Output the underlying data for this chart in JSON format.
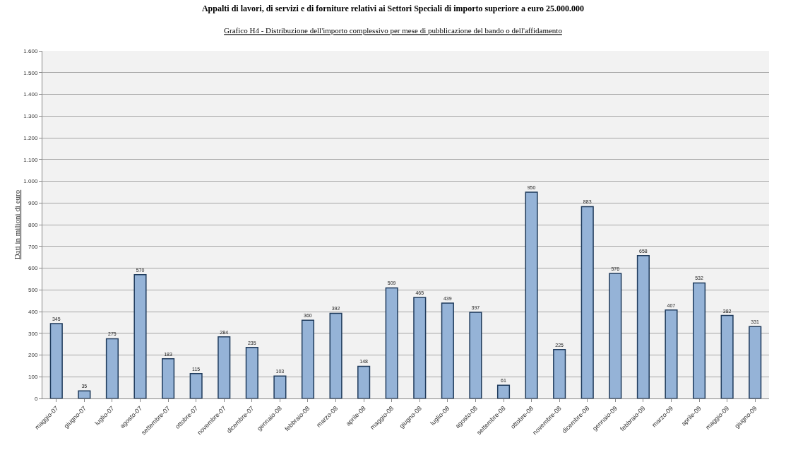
{
  "chart_data": {
    "type": "bar",
    "title": "Appalti di lavori, di servizi e di forniture relativi ai Settori Speciali di importo superiore a euro 25.000.000",
    "subtitle": "Grafico H4 - Distribuzione dell'importo complessivo per mese di pubblicazione del bando o dell'affidamento",
    "ylabel": "Dati in milioni di euro",
    "categories": [
      "maggio-07",
      "giugno-07",
      "luglio-07",
      "agosto-07",
      "settembre-07",
      "ottobre-07",
      "novembre-07",
      "dicembre-07",
      "gennaio-08",
      "febbraio-08",
      "marzo-08",
      "aprile-08",
      "maggio-08",
      "giugno-08",
      "luglio-08",
      "agosto-08",
      "settembre-08",
      "ottobre-08",
      "novembre-08",
      "dicembre-08",
      "gennaio-09",
      "febbraio-09",
      "marzo-09",
      "aprile-09",
      "maggio-09",
      "giugno-09"
    ],
    "values": [
      345,
      35,
      275,
      570,
      183,
      115,
      284,
      235,
      103,
      360,
      392,
      148,
      509,
      465,
      439,
      397,
      61,
      950,
      225,
      883,
      576,
      658,
      407,
      532,
      382,
      331
    ],
    "color": "#95b3d7",
    "data_labels": true,
    "grid": "y",
    "ylim": [
      0,
      1600
    ],
    "yticks": [
      0,
      100,
      200,
      300,
      400,
      500,
      600,
      700,
      800,
      900,
      {
        "value": 1000,
        "label": "1.000"
      },
      {
        "value": 1100,
        "label": "1.100"
      },
      {
        "value": 1200,
        "label": "1.200"
      },
      {
        "value": 1300,
        "label": "1.300"
      },
      {
        "value": 1400,
        "label": "1.400"
      },
      {
        "value": 1500,
        "label": "1.500"
      },
      {
        "value": 1600,
        "label": "1.600"
      }
    ]
  }
}
